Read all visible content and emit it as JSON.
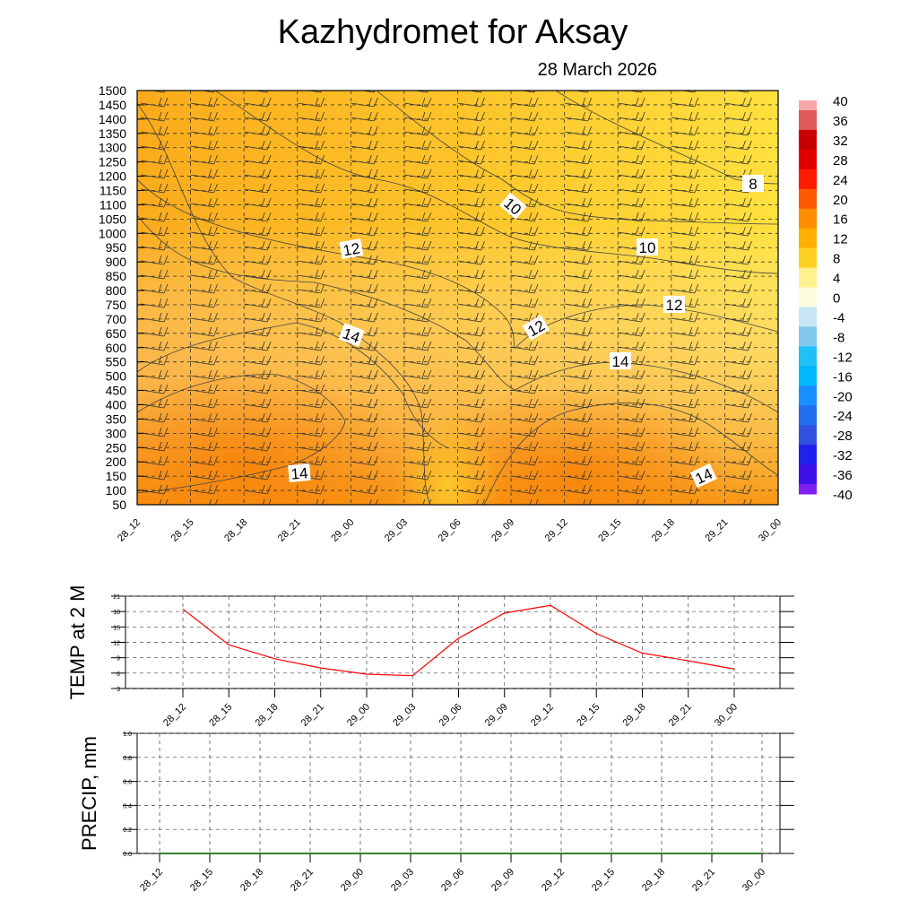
{
  "title": "Kazhydromet  for Aksay",
  "subtitle": "28 March 2026",
  "chart_data": [
    {
      "type": "heatmap",
      "title": "Temperature / wind cross-section",
      "xlabels": [
        "28_12",
        "28_15",
        "28_18",
        "28_21",
        "29_00",
        "29_03",
        "29_06",
        "29_09",
        "29_12",
        "29_15",
        "29_18",
        "29_21",
        "30_00"
      ],
      "ylabels": [
        "50",
        "100",
        "150",
        "200",
        "250",
        "300",
        "350",
        "400",
        "450",
        "500",
        "550",
        "600",
        "650",
        "700",
        "750",
        "800",
        "850",
        "900",
        "950",
        "1000",
        "1050",
        "1100",
        "1150",
        "1200",
        "1250",
        "1300",
        "1350",
        "1400",
        "1450",
        "1500"
      ],
      "ylim": [
        50,
        1500
      ],
      "contour_labels": [
        "10",
        "12",
        "14",
        "14",
        "12",
        "10",
        "12",
        "14",
        "14",
        "8",
        "12",
        "14"
      ],
      "colorbar": {
        "labels": [
          "40",
          "36",
          "32",
          "28",
          "24",
          "20",
          "16",
          "12",
          "8",
          "4",
          "0",
          "-4",
          "-8",
          "-12",
          "-16",
          "-20",
          "-24",
          "-28",
          "-32",
          "-36",
          "-40"
        ],
        "colors": [
          "#f8a8a8",
          "#e05a5a",
          "#c80000",
          "#e00000",
          "#ff1a00",
          "#ff5a00",
          "#ff8c00",
          "#ffb000",
          "#fdd020",
          "#fff090",
          "#fffde0",
          "#c8e6f5",
          "#80c8ec",
          "#20c0f8",
          "#00b8ff",
          "#1890ff",
          "#2070f0",
          "#3050e0",
          "#2020f0",
          "#4010e8",
          "#8020f0"
        ]
      }
    },
    {
      "type": "line",
      "ylabel": "TEMP at 2 M",
      "x": [
        "28_12",
        "28_15",
        "28_18",
        "28_21",
        "29_00",
        "29_03",
        "29_06",
        "29_09",
        "29_12",
        "29_15",
        "29_18",
        "29_21",
        "30_00"
      ],
      "values": [
        18.5,
        11.5,
        8.8,
        7.0,
        5.8,
        5.5,
        12.8,
        17.7,
        19.2,
        13.7,
        9.9,
        8.4,
        6.8
      ],
      "ylim": [
        3,
        21
      ],
      "yticks": [
        "3",
        "6",
        "9",
        "12",
        "15",
        "18",
        "21"
      ],
      "color": "#ff0000"
    },
    {
      "type": "line",
      "ylabel": "PRECIP, mm",
      "x": [
        "28_12",
        "28_15",
        "28_18",
        "28_21",
        "29_00",
        "29_03",
        "29_06",
        "29_09",
        "29_12",
        "29_15",
        "29_18",
        "29_21",
        "30_00"
      ],
      "values": [
        0,
        0,
        0,
        0,
        0,
        0,
        0,
        0,
        0,
        0,
        0,
        0,
        0
      ],
      "ylim": [
        0,
        1
      ],
      "yticks": [
        "0.0",
        "0.2",
        "0.4",
        "0.6",
        "0.8",
        "1.0"
      ],
      "color": "#008000"
    }
  ]
}
